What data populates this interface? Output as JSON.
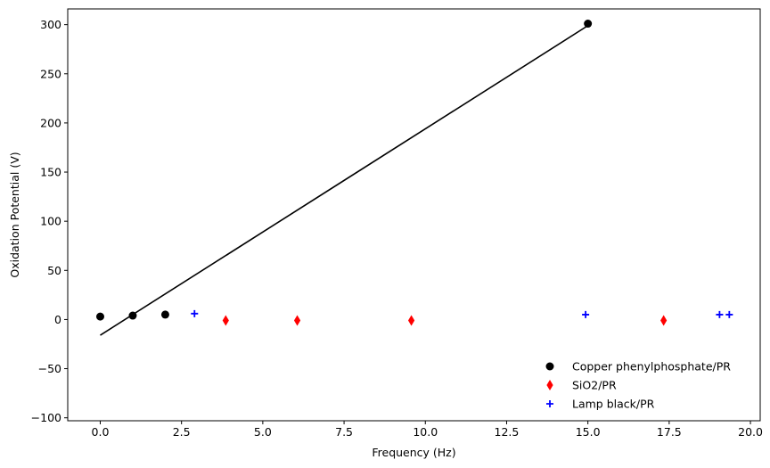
{
  "chart_data": {
    "type": "scatter",
    "title": "",
    "xlabel": "Frequency (Hz)",
    "ylabel": "Oxidation Potential (V)",
    "xlim": [
      -1.0,
      20.3
    ],
    "ylim": [
      -103,
      316
    ],
    "xticks": [
      0.0,
      2.5,
      5.0,
      7.5,
      10.0,
      12.5,
      15.0,
      17.5,
      20.0
    ],
    "xtick_labels": [
      "0.0",
      "2.5",
      "5.0",
      "7.5",
      "10.0",
      "12.5",
      "15.0",
      "17.5",
      "20.0"
    ],
    "yticks": [
      -100,
      -50,
      0,
      50,
      100,
      150,
      200,
      250,
      300
    ],
    "ytick_labels": [
      "−100",
      "−50",
      "0",
      "50",
      "100",
      "150",
      "200",
      "250",
      "300"
    ],
    "grid": false,
    "legend_position": "bottom-right",
    "series": [
      {
        "name": "Copper phenylphosphate/PR",
        "marker": "circle",
        "color": "#000000",
        "x": [
          0.0,
          1.0,
          2.0,
          15.0
        ],
        "y": [
          3,
          4,
          5,
          301
        ]
      },
      {
        "name": "SiO2/PR",
        "marker": "diamond",
        "color": "#ff0000",
        "x": [
          3.86,
          6.06,
          9.57,
          17.33
        ],
        "y": [
          -1,
          -1,
          -1,
          -1
        ]
      },
      {
        "name": "Lamp black/PR",
        "marker": "plus",
        "color": "#0000ff",
        "x": [
          2.9,
          14.93,
          19.05,
          19.35
        ],
        "y": [
          6,
          5,
          5,
          5
        ]
      }
    ],
    "fit_line": {
      "color": "#000000",
      "x": [
        0.0,
        15.0
      ],
      "y": [
        -16,
        299
      ]
    }
  }
}
